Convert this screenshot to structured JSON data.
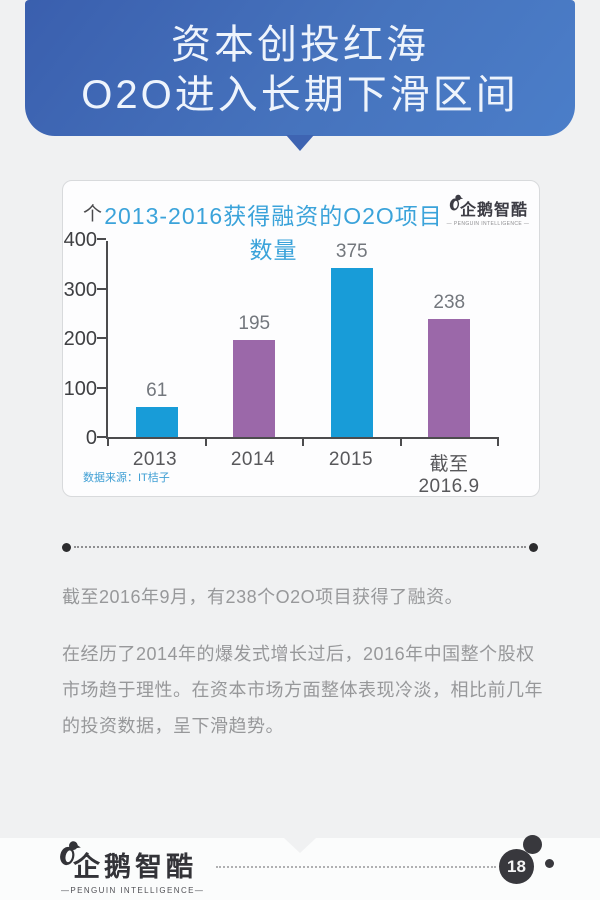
{
  "header": {
    "title_line1": "资本创投红海",
    "title_line2": "O2O进入长期下滑区间",
    "banner_color_from": "#3a5fae",
    "banner_color_to": "#4b7ec9"
  },
  "chart_card": {
    "brand": {
      "name": "企鹅智酷",
      "subtitle": "— PENGUIN INTELLIGENCE —"
    },
    "source": "数据来源：IT桔子"
  },
  "chart_data": {
    "type": "bar",
    "title": "2013-2016获得融资的O2O项目数量",
    "unit": "个",
    "categories": [
      "2013",
      "2014",
      "2015",
      "截至2016.9"
    ],
    "values": [
      61,
      195,
      375,
      238
    ],
    "bar_colors": [
      "#189cd8",
      "#9b68a9",
      "#189cd8",
      "#9b68a9"
    ],
    "ylim": [
      0,
      400
    ],
    "yticks": [
      0,
      100,
      200,
      300,
      400
    ],
    "grid": false,
    "legend": "none",
    "value_label_color": "#73777d",
    "title_color": "#3ba3da"
  },
  "body": {
    "paragraph1": "截至2016年9月，有238个O2O项目获得了融资。",
    "paragraph2": "在经历了2014年的爆发式增长过后，2016年中国整个股权市场趋于理性。在资本市场方面整体表现冷淡，相比前几年的投资数据，呈下滑趋势。"
  },
  "footer": {
    "brand": {
      "name": "企鹅智酷",
      "subtitle": "—PENGUIN INTELLIGENCE—"
    },
    "page_number": "18"
  }
}
